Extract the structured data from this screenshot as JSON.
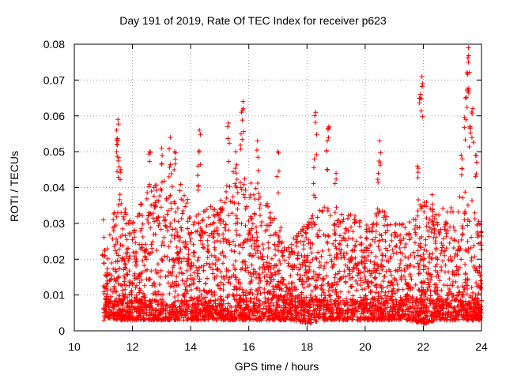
{
  "chart_data": {
    "type": "scatter",
    "title": "Day 191 of 2019, Rate Of TEC Index for receiver p623",
    "xlabel": "GPS time / hours",
    "ylabel": "ROTI / TECUs",
    "xlim": [
      10,
      24
    ],
    "ylim": [
      0,
      0.08
    ],
    "xticks": [
      "10",
      "12",
      "14",
      "16",
      "18",
      "20",
      "22",
      "24"
    ],
    "yticks": [
      "0",
      "0.01",
      "0.02",
      "0.03",
      "0.04",
      "0.05",
      "0.06",
      "0.07",
      "0.08"
    ],
    "marker": "+",
    "color": "#ff0000",
    "grid": true,
    "peaks": [
      {
        "x": 11.0,
        "y": 0.031
      },
      {
        "x": 11.5,
        "y": 0.059
      },
      {
        "x": 11.45,
        "y": 0.056
      },
      {
        "x": 11.5,
        "y": 0.053
      },
      {
        "x": 11.6,
        "y": 0.045
      },
      {
        "x": 12.6,
        "y": 0.05
      },
      {
        "x": 13.0,
        "y": 0.051
      },
      {
        "x": 13.3,
        "y": 0.054
      },
      {
        "x": 13.45,
        "y": 0.05
      },
      {
        "x": 14.3,
        "y": 0.056
      },
      {
        "x": 14.25,
        "y": 0.046
      },
      {
        "x": 15.3,
        "y": 0.058
      },
      {
        "x": 15.55,
        "y": 0.05
      },
      {
        "x": 15.8,
        "y": 0.064
      },
      {
        "x": 15.75,
        "y": 0.061
      },
      {
        "x": 16.3,
        "y": 0.053
      },
      {
        "x": 17.0,
        "y": 0.05
      },
      {
        "x": 18.3,
        "y": 0.061
      },
      {
        "x": 18.25,
        "y": 0.048
      },
      {
        "x": 18.75,
        "y": 0.057
      },
      {
        "x": 18.7,
        "y": 0.053
      },
      {
        "x": 19.0,
        "y": 0.044
      },
      {
        "x": 20.5,
        "y": 0.053
      },
      {
        "x": 20.45,
        "y": 0.044
      },
      {
        "x": 21.8,
        "y": 0.046
      },
      {
        "x": 21.95,
        "y": 0.071
      },
      {
        "x": 21.9,
        "y": 0.066
      },
      {
        "x": 22.3,
        "y": 0.038
      },
      {
        "x": 23.3,
        "y": 0.049
      },
      {
        "x": 23.55,
        "y": 0.079
      },
      {
        "x": 23.5,
        "y": 0.072
      },
      {
        "x": 23.55,
        "y": 0.075
      },
      {
        "x": 23.45,
        "y": 0.065
      },
      {
        "x": 23.7,
        "y": 0.062
      },
      {
        "x": 23.6,
        "y": 0.057
      },
      {
        "x": 23.8,
        "y": 0.049
      }
    ],
    "envelope": {
      "hours": [
        11.0,
        11.5,
        12.0,
        12.5,
        13.0,
        13.5,
        14.0,
        14.5,
        15.0,
        15.5,
        16.0,
        16.5,
        17.0,
        17.5,
        18.0,
        18.5,
        19.0,
        19.5,
        20.0,
        20.5,
        21.0,
        21.5,
        22.0,
        22.5,
        23.0,
        23.5,
        24.0
      ],
      "upper": [
        0.022,
        0.038,
        0.03,
        0.04,
        0.042,
        0.044,
        0.035,
        0.034,
        0.036,
        0.046,
        0.042,
        0.038,
        0.03,
        0.026,
        0.03,
        0.036,
        0.033,
        0.034,
        0.03,
        0.035,
        0.03,
        0.03,
        0.037,
        0.034,
        0.036,
        0.04,
        0.03
      ],
      "lower": [
        0.004,
        0.003,
        0.003,
        0.003,
        0.003,
        0.003,
        0.003,
        0.003,
        0.003,
        0.003,
        0.003,
        0.003,
        0.003,
        0.003,
        0.002,
        0.003,
        0.003,
        0.003,
        0.003,
        0.003,
        0.003,
        0.003,
        0.002,
        0.003,
        0.003,
        0.003,
        0.003
      ]
    }
  }
}
